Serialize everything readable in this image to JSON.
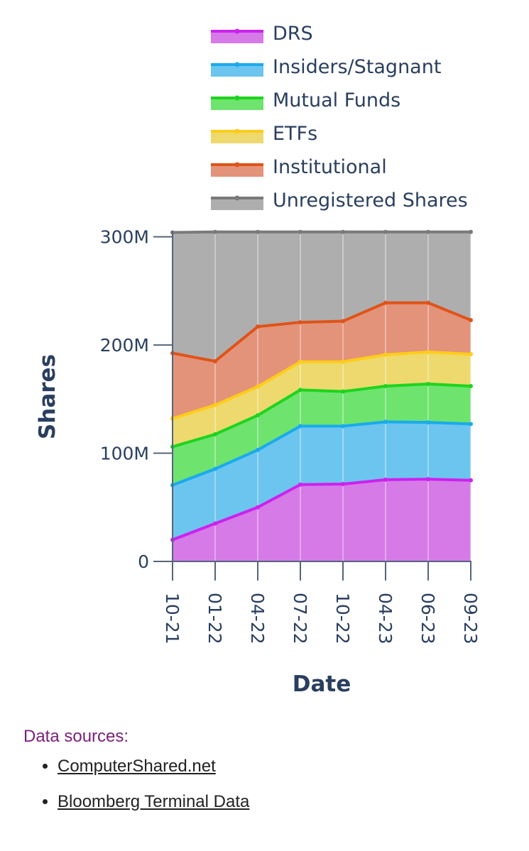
{
  "chart_data": {
    "type": "area",
    "stacked": true,
    "title": "",
    "xlabel": "Date",
    "ylabel": "Shares",
    "ylim": [
      0,
      305
    ],
    "y_unit": "millions of shares",
    "y_ticks": [
      {
        "value": 0,
        "label": "0"
      },
      {
        "value": 100,
        "label": "100M"
      },
      {
        "value": 200,
        "label": "200M"
      },
      {
        "value": 300,
        "label": "300M"
      }
    ],
    "categories": [
      "10-21",
      "01-22",
      "04-22",
      "07-22",
      "10-22",
      "04-23",
      "06-23",
      "09-23"
    ],
    "series": [
      {
        "name": "DRS",
        "values": [
          20,
          35,
          50,
          71,
          71.5,
          75.5,
          76,
          75
        ]
      },
      {
        "name": "Insiders/Stagnant",
        "values": [
          50.5,
          50.5,
          53,
          54,
          53.5,
          53.5,
          52.5,
          52
        ]
      },
      {
        "name": "Mutual Funds",
        "values": [
          35.5,
          32,
          32,
          33.5,
          32,
          33,
          35.5,
          35
        ]
      },
      {
        "name": "ETFs",
        "values": [
          26,
          27,
          26.5,
          26,
          27.5,
          29,
          29.5,
          29.5
        ]
      },
      {
        "name": "Institutional",
        "values": [
          60.5,
          40.5,
          55.5,
          36.5,
          37.5,
          48,
          45.5,
          31.5
        ]
      },
      {
        "name": "Unregistered Shares",
        "values": [
          111.5,
          119.5,
          87.5,
          83.5,
          82.5,
          65.5,
          65.5,
          81.5
        ]
      }
    ],
    "legend_position": "top"
  },
  "colors": {
    "DRS": {
      "line": "#cc22ee",
      "fill": "#d67ae8"
    },
    "Insiders/Stagnant": {
      "line": "#1aaaee",
      "fill": "#6cc5ee"
    },
    "Mutual Funds": {
      "line": "#1ed41e",
      "fill": "#6ee36e"
    },
    "ETFs": {
      "line": "#ffcc18",
      "fill": "#eed96e"
    },
    "Institutional": {
      "line": "#e05319",
      "fill": "#e3937a"
    },
    "Unregistered Shares": {
      "line": "#7a7a7a",
      "fill": "#aeaeae"
    }
  },
  "sources": {
    "title": "Data sources:",
    "items": [
      "ComputerShared.net",
      "Bloomberg Terminal Data"
    ]
  }
}
